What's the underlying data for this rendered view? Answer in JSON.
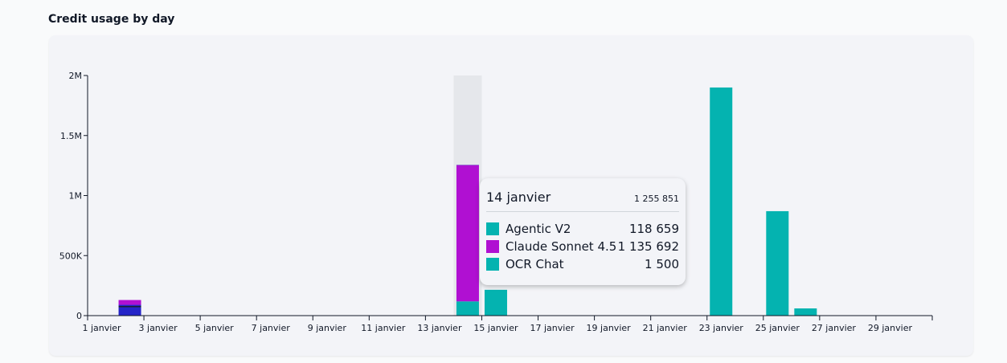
{
  "title": "Credit usage by day",
  "colors": {
    "agentic": "#04b3b0",
    "claude": "#b010d2",
    "ocr": "#04b3b0",
    "other": "#2424c8",
    "highlight": "#e5e7eb"
  },
  "tooltip": {
    "date": "14 janvier",
    "total": "1 255 851",
    "rows": [
      {
        "name": "Agentic V2",
        "value": "118 659",
        "color": "#04b3b0"
      },
      {
        "name": "Claude Sonnet 4.5",
        "value": "1 135 692",
        "color": "#b010d2"
      },
      {
        "name": "OCR Chat",
        "value": "1 500",
        "color": "#04b3b0"
      }
    ]
  },
  "chart_data": {
    "type": "bar",
    "stacked": true,
    "title": "Credit usage by day",
    "ylim": [
      0,
      2000000
    ],
    "y_ticks": [
      {
        "value": 0,
        "label": "0"
      },
      {
        "value": 500000,
        "label": "500K"
      },
      {
        "value": 1000000,
        "label": "1M"
      },
      {
        "value": 1500000,
        "label": "1.5M"
      },
      {
        "value": 2000000,
        "label": "2M"
      }
    ],
    "days": [
      1,
      2,
      3,
      4,
      5,
      6,
      7,
      8,
      9,
      10,
      11,
      12,
      13,
      14,
      15,
      16,
      17,
      18,
      19,
      20,
      21,
      22,
      23,
      24,
      25,
      26,
      27,
      28,
      29,
      30
    ],
    "x_tick_labels": [
      {
        "day": 1,
        "label": "1 janvier"
      },
      {
        "day": 3,
        "label": "3 janvier"
      },
      {
        "day": 5,
        "label": "5 janvier"
      },
      {
        "day": 7,
        "label": "7 janvier"
      },
      {
        "day": 9,
        "label": "9 janvier"
      },
      {
        "day": 11,
        "label": "11 janvier"
      },
      {
        "day": 13,
        "label": "13 janvier"
      },
      {
        "day": 15,
        "label": "15 janvier"
      },
      {
        "day": 17,
        "label": "17 janvier"
      },
      {
        "day": 19,
        "label": "19 janvier"
      },
      {
        "day": 21,
        "label": "21 janvier"
      },
      {
        "day": 23,
        "label": "23 janvier"
      },
      {
        "day": 25,
        "label": "25 janvier"
      },
      {
        "day": 27,
        "label": "27 janvier"
      },
      {
        "day": 29,
        "label": "29 janvier"
      }
    ],
    "highlight_day": 14,
    "bars": [
      {
        "day": 2,
        "segments": [
          {
            "color": "#2424c8",
            "value": 70000
          },
          {
            "color": "#111827",
            "value": 10000
          },
          {
            "color": "#2424c8",
            "value": 10000
          },
          {
            "color": "#b010d2",
            "value": 40000
          }
        ]
      },
      {
        "day": 14,
        "segments": [
          {
            "color": "#04b3b0",
            "value": 118659
          },
          {
            "color": "#b010d2",
            "value": 1135692
          },
          {
            "color": "#04b3b0",
            "value": 1500
          }
        ]
      },
      {
        "day": 15,
        "segments": [
          {
            "color": "#04b3b0",
            "value": 215000
          }
        ]
      },
      {
        "day": 23,
        "segments": [
          {
            "color": "#04b3b0",
            "value": 1900000
          }
        ]
      },
      {
        "day": 25,
        "segments": [
          {
            "color": "#04b3b0",
            "value": 870000
          }
        ]
      },
      {
        "day": 26,
        "segments": [
          {
            "color": "#04b3b0",
            "value": 60000
          }
        ]
      }
    ]
  }
}
